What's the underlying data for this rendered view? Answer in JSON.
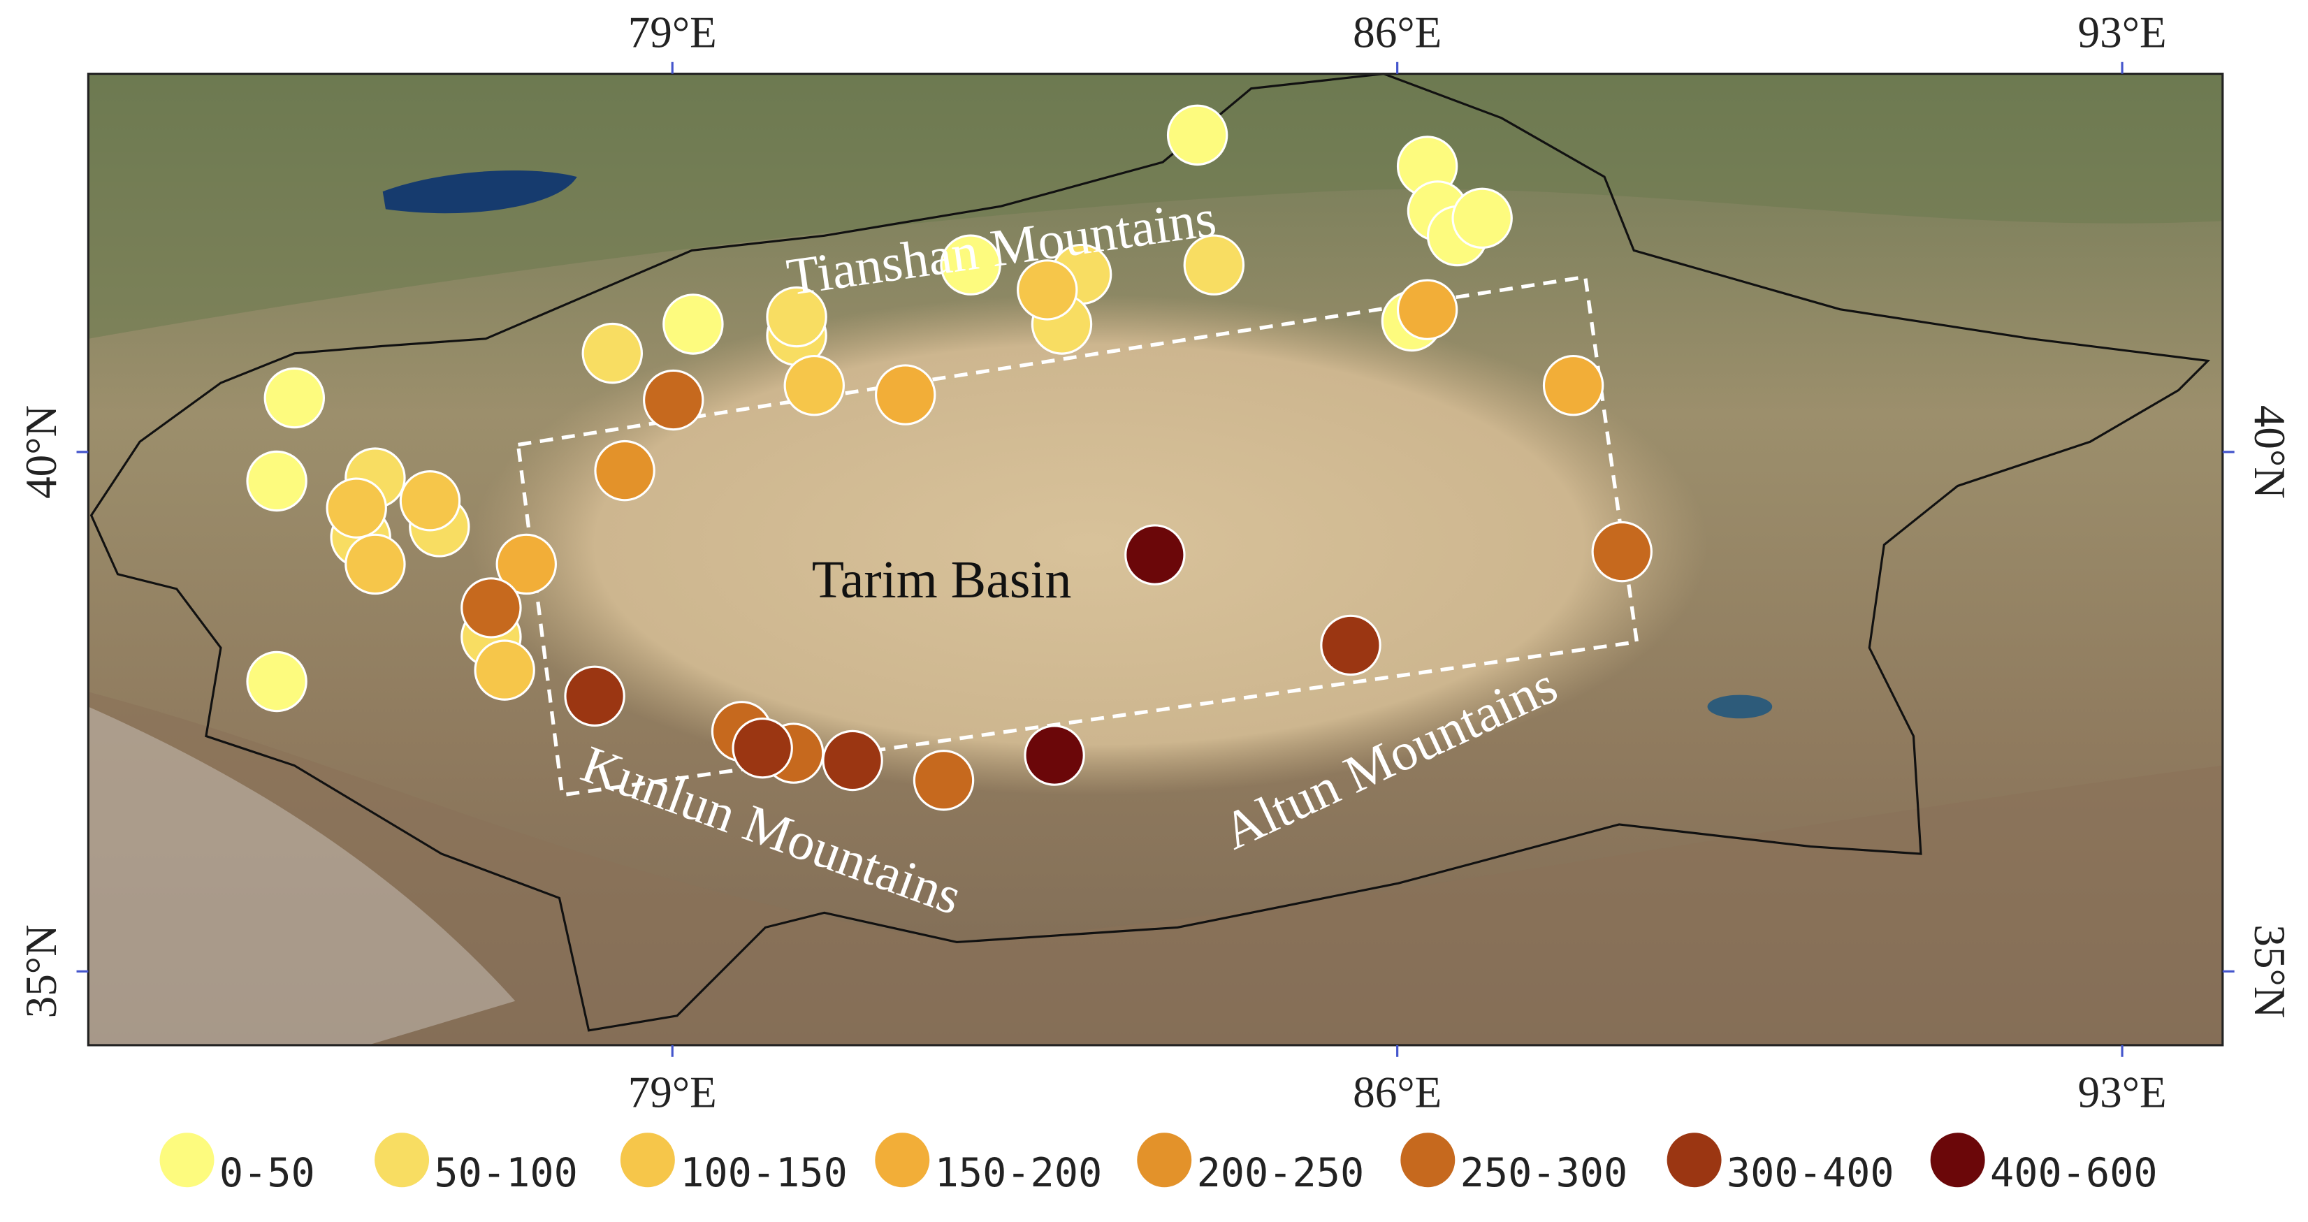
{
  "map": {
    "xlim": [
      73.36,
      93.97
    ],
    "ylim": [
      34.29,
      43.64
    ],
    "xticks": [
      {
        "value": 79,
        "label": "79°E"
      },
      {
        "value": 86,
        "label": "86°E"
      },
      {
        "value": 93,
        "label": "93°E"
      }
    ],
    "yticks": [
      {
        "value": 35,
        "label": "35°N"
      },
      {
        "value": 40,
        "label": "40°N"
      }
    ],
    "regions": [
      {
        "label": "Tianshan Mountains",
        "lon": 82.2,
        "lat": 41.8
      },
      {
        "label": "Tarim Basin",
        "lon": 81.6,
        "lat": 38.6
      },
      {
        "label": "Kunlun Mountains",
        "lon": 79.9,
        "lat": 36.2
      },
      {
        "label": "Altun Mountains",
        "lon": 86.0,
        "lat": 36.9
      }
    ],
    "classes": [
      {
        "label": "0-50",
        "color": "#fdfb7e",
        "points": [
          {
            "lon": 84.07,
            "lat": 43.05
          },
          {
            "lon": 86.29,
            "lat": 42.75
          },
          {
            "lon": 86.39,
            "lat": 42.32
          },
          {
            "lon": 86.58,
            "lat": 42.08
          },
          {
            "lon": 86.82,
            "lat": 42.25
          },
          {
            "lon": 86.14,
            "lat": 41.26
          },
          {
            "lon": 81.88,
            "lat": 41.8
          },
          {
            "lon": 79.2,
            "lat": 41.23
          },
          {
            "lon": 75.35,
            "lat": 40.52
          },
          {
            "lon": 75.18,
            "lat": 39.72
          },
          {
            "lon": 75.18,
            "lat": 37.79
          }
        ]
      },
      {
        "label": "50-100",
        "color": "#f8dd62",
        "points": [
          {
            "lon": 82.95,
            "lat": 41.71
          },
          {
            "lon": 82.76,
            "lat": 41.23
          },
          {
            "lon": 84.23,
            "lat": 41.8
          },
          {
            "lon": 80.2,
            "lat": 41.12
          },
          {
            "lon": 80.2,
            "lat": 41.3
          },
          {
            "lon": 78.42,
            "lat": 40.95
          },
          {
            "lon": 76.13,
            "lat": 39.75
          },
          {
            "lon": 75.99,
            "lat": 39.18
          },
          {
            "lon": 76.75,
            "lat": 39.28
          },
          {
            "lon": 77.25,
            "lat": 38.22
          }
        ]
      },
      {
        "label": "100-150",
        "color": "#f6c64a",
        "points": [
          {
            "lon": 82.62,
            "lat": 41.56
          },
          {
            "lon": 80.37,
            "lat": 40.64
          },
          {
            "lon": 75.95,
            "lat": 39.46
          },
          {
            "lon": 76.66,
            "lat": 39.53
          },
          {
            "lon": 76.13,
            "lat": 38.92
          },
          {
            "lon": 77.38,
            "lat": 37.9
          }
        ]
      },
      {
        "label": "150-200",
        "color": "#f2ae38",
        "points": [
          {
            "lon": 86.29,
            "lat": 41.37
          },
          {
            "lon": 81.25,
            "lat": 40.55
          },
          {
            "lon": 77.59,
            "lat": 38.92
          },
          {
            "lon": 87.7,
            "lat": 40.64
          }
        ]
      },
      {
        "label": "200-250",
        "color": "#e3922a",
        "points": [
          {
            "lon": 78.54,
            "lat": 39.82
          }
        ]
      },
      {
        "label": "250-300",
        "color": "#c6691e",
        "points": [
          {
            "lon": 79.01,
            "lat": 40.5
          },
          {
            "lon": 77.25,
            "lat": 38.5
          },
          {
            "lon": 88.17,
            "lat": 39.04
          },
          {
            "lon": 79.67,
            "lat": 37.31
          },
          {
            "lon": 80.17,
            "lat": 37.1
          },
          {
            "lon": 81.62,
            "lat": 36.84
          }
        ]
      },
      {
        "label": "300-400",
        "color": "#9b3612",
        "points": [
          {
            "lon": 78.25,
            "lat": 37.65
          },
          {
            "lon": 85.55,
            "lat": 38.14
          },
          {
            "lon": 79.87,
            "lat": 37.15
          },
          {
            "lon": 80.74,
            "lat": 37.03
          }
        ]
      },
      {
        "label": "400-600",
        "color": "#6b0709",
        "points": [
          {
            "lon": 83.66,
            "lat": 39.01
          },
          {
            "lon": 82.69,
            "lat": 37.08
          }
        ]
      }
    ]
  }
}
